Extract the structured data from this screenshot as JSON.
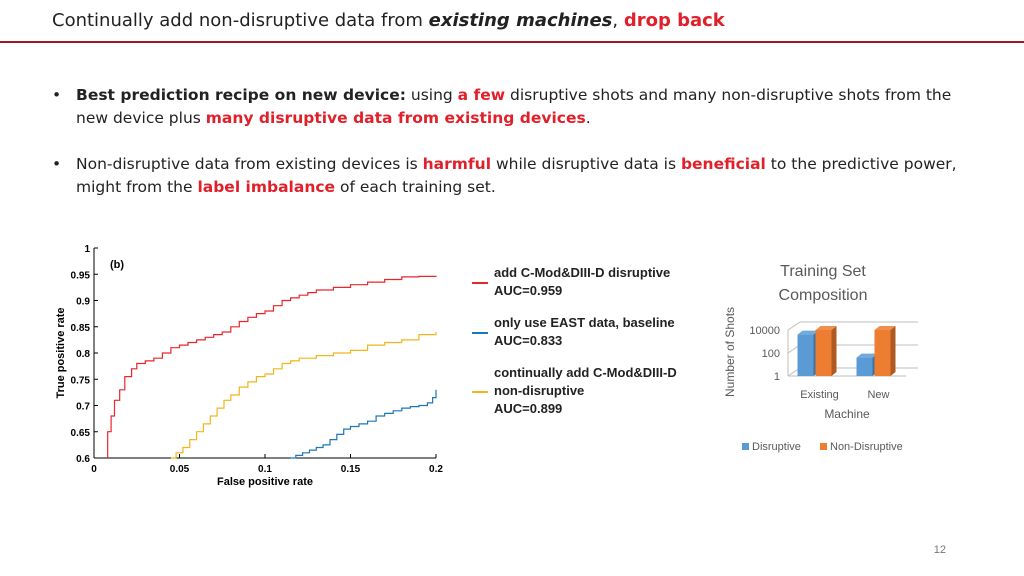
{
  "slide": {
    "title_prefix": "Continually add non-disruptive data from ",
    "title_emph": "existing machines",
    "title_sep": ", ",
    "title_red": "drop back",
    "page_number": "12"
  },
  "bullets": [
    {
      "lead": "Best prediction recipe on new device:",
      "t1": " using ",
      "r1": "a few",
      "t2": " disruptive shots and many non-disruptive shots from the new device plus ",
      "r2": "many disruptive data from existing devices",
      "t3": "."
    },
    {
      "t1": "Non-disruptive data from existing devices is ",
      "r1": "harmful",
      "t2": " while disruptive data is ",
      "r2": "beneficial",
      "t3": " to the predictive power, might from the ",
      "r3": "label imbalance",
      "t4": " of each training set."
    }
  ],
  "chart_data": [
    {
      "type": "line",
      "panel_label": "(b)",
      "xlabel": "False positive rate",
      "ylabel": "True positive rate",
      "xlim": [
        0,
        0.2
      ],
      "ylim": [
        0.6,
        1
      ],
      "xticks": [
        "0",
        "0.05",
        "0.1",
        "0.15",
        "0.2"
      ],
      "yticks": [
        "0.6",
        "0.65",
        "0.7",
        "0.75",
        "0.8",
        "0.85",
        "0.9",
        "0.95",
        "1"
      ],
      "series": [
        {
          "name": "add C-Mod&DIII-D disruptive",
          "auc": "AUC=0.959",
          "color": "#e8262c",
          "points": [
            [
              0.008,
              0.6
            ],
            [
              0.008,
              0.65
            ],
            [
              0.01,
              0.68
            ],
            [
              0.012,
              0.71
            ],
            [
              0.015,
              0.73
            ],
            [
              0.018,
              0.755
            ],
            [
              0.022,
              0.77
            ],
            [
              0.025,
              0.78
            ],
            [
              0.03,
              0.785
            ],
            [
              0.035,
              0.79
            ],
            [
              0.04,
              0.8
            ],
            [
              0.045,
              0.81
            ],
            [
              0.05,
              0.815
            ],
            [
              0.055,
              0.82
            ],
            [
              0.06,
              0.825
            ],
            [
              0.065,
              0.83
            ],
            [
              0.07,
              0.835
            ],
            [
              0.075,
              0.84
            ],
            [
              0.08,
              0.85
            ],
            [
              0.085,
              0.86
            ],
            [
              0.09,
              0.868
            ],
            [
              0.095,
              0.875
            ],
            [
              0.1,
              0.88
            ],
            [
              0.105,
              0.89
            ],
            [
              0.11,
              0.9
            ],
            [
              0.115,
              0.905
            ],
            [
              0.12,
              0.91
            ],
            [
              0.125,
              0.915
            ],
            [
              0.13,
              0.92
            ],
            [
              0.14,
              0.925
            ],
            [
              0.15,
              0.93
            ],
            [
              0.16,
              0.935
            ],
            [
              0.17,
              0.94
            ],
            [
              0.18,
              0.945
            ],
            [
              0.19,
              0.946
            ],
            [
              0.2,
              0.947
            ]
          ]
        },
        {
          "name": "only use EAST data, baseline",
          "auc": "AUC=0.833",
          "color": "#1f77b4",
          "points": [
            [
              0.115,
              0.6
            ],
            [
              0.118,
              0.605
            ],
            [
              0.122,
              0.61
            ],
            [
              0.126,
              0.615
            ],
            [
              0.13,
              0.62
            ],
            [
              0.134,
              0.625
            ],
            [
              0.138,
              0.635
            ],
            [
              0.142,
              0.645
            ],
            [
              0.146,
              0.655
            ],
            [
              0.15,
              0.66
            ],
            [
              0.155,
              0.665
            ],
            [
              0.16,
              0.67
            ],
            [
              0.165,
              0.68
            ],
            [
              0.17,
              0.685
            ],
            [
              0.175,
              0.69
            ],
            [
              0.18,
              0.695
            ],
            [
              0.185,
              0.698
            ],
            [
              0.19,
              0.7
            ],
            [
              0.195,
              0.705
            ],
            [
              0.198,
              0.715
            ],
            [
              0.2,
              0.73
            ]
          ]
        },
        {
          "name": "continually add C-Mod&DIII-D non-disruptive",
          "auc": "AUC=0.899",
          "color": "#f2b51c",
          "points": [
            [
              0.045,
              0.6
            ],
            [
              0.048,
              0.61
            ],
            [
              0.052,
              0.62
            ],
            [
              0.056,
              0.635
            ],
            [
              0.06,
              0.65
            ],
            [
              0.064,
              0.665
            ],
            [
              0.068,
              0.68
            ],
            [
              0.072,
              0.695
            ],
            [
              0.076,
              0.71
            ],
            [
              0.08,
              0.72
            ],
            [
              0.085,
              0.735
            ],
            [
              0.09,
              0.745
            ],
            [
              0.095,
              0.755
            ],
            [
              0.1,
              0.76
            ],
            [
              0.105,
              0.77
            ],
            [
              0.11,
              0.78
            ],
            [
              0.115,
              0.785
            ],
            [
              0.12,
              0.79
            ],
            [
              0.13,
              0.795
            ],
            [
              0.14,
              0.8
            ],
            [
              0.15,
              0.805
            ],
            [
              0.16,
              0.815
            ],
            [
              0.17,
              0.82
            ],
            [
              0.18,
              0.825
            ],
            [
              0.19,
              0.835
            ],
            [
              0.2,
              0.84
            ]
          ]
        }
      ]
    },
    {
      "type": "bar",
      "title_line1": "Training Set",
      "title_line2": "Composition",
      "ylabel": "Number of Shots",
      "xlabel": "Machine",
      "yscale": "log",
      "yticks": [
        "1",
        "100",
        "10000"
      ],
      "categories": [
        "Existing",
        "New"
      ],
      "series": [
        {
          "name": "Disruptive",
          "color": "#5b9bd5",
          "values": [
            4000,
            40
          ]
        },
        {
          "name": "Non-Disruptive",
          "color": "#ed7d31",
          "values": [
            10000,
            10000
          ]
        }
      ],
      "legend_position": "bottom"
    }
  ]
}
